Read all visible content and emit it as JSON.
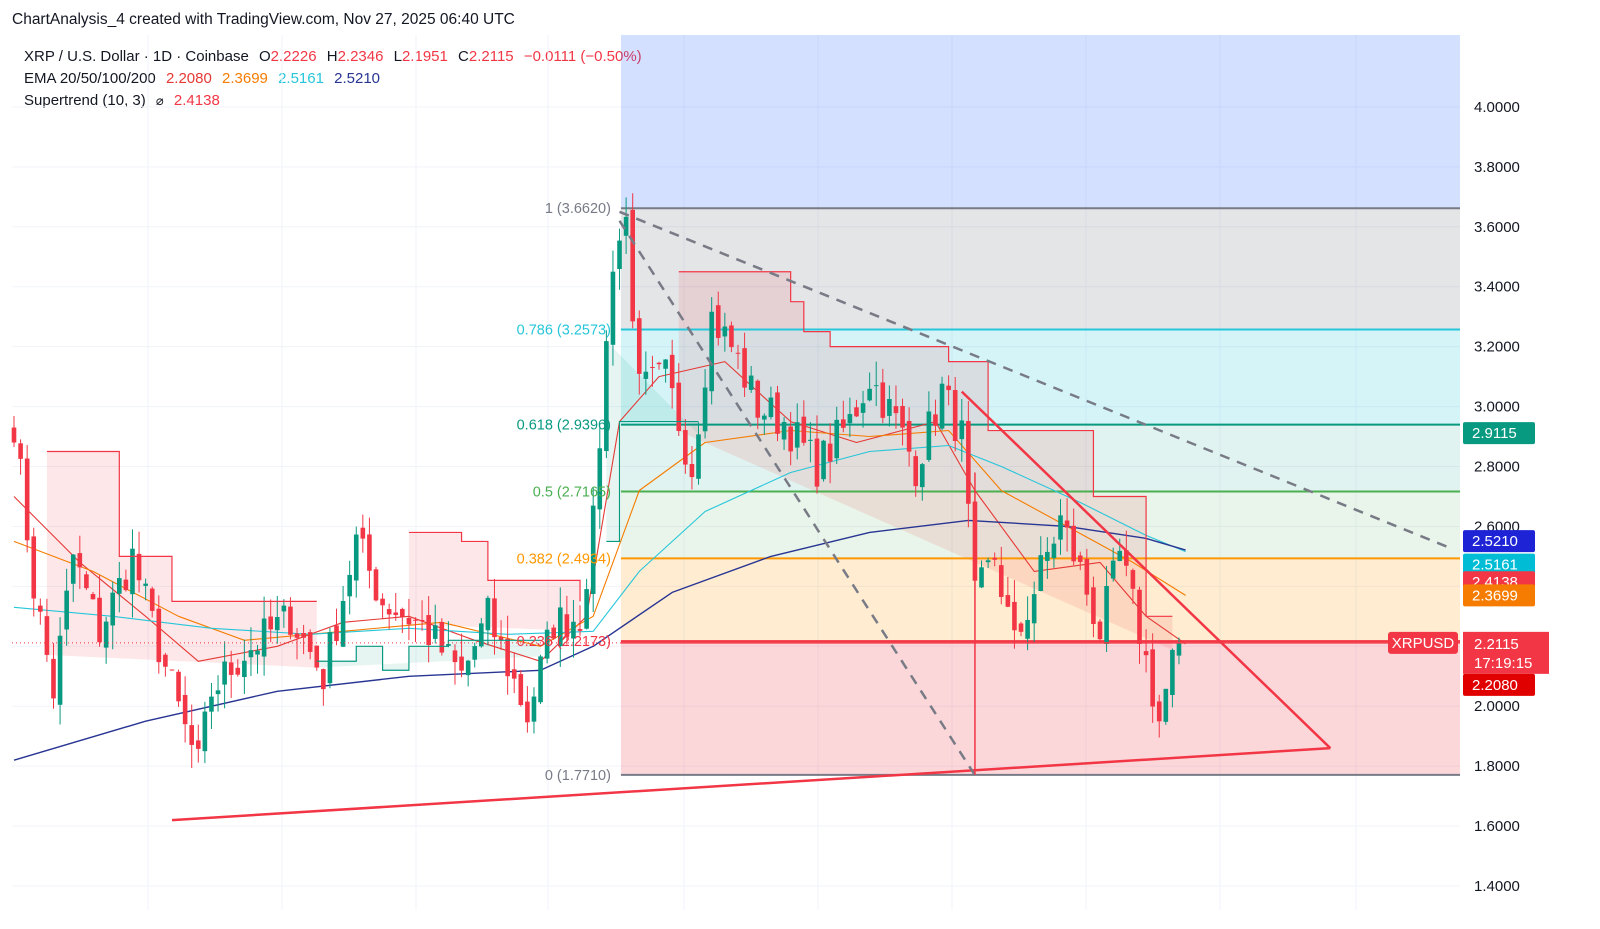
{
  "header": {
    "snapshot": "ChartAnalysis_4 created with TradingView.com, Nov 27, 2025 06:40 UTC"
  },
  "legend": {
    "symbol": "XRP / U.S. Dollar · 1D · Coinbase",
    "o_label": "O",
    "o": "2.2226",
    "h_label": "H",
    "h": "2.2346",
    "l_label": "L",
    "l": "2.1951",
    "c_label": "C",
    "c": "2.2115",
    "change": "−0.0111 (−0.50%)",
    "ema_label": "EMA 20/50/100/200",
    "ema20": "2.2080",
    "ema50": "2.3699",
    "ema100": "2.5161",
    "ema200": "2.5210",
    "st_label": "Supertrend (10, 3)",
    "st_icon": "⌀",
    "st_value": "2.4138"
  },
  "colors": {
    "ema20": "#e53935",
    "ema50": "#f57c00",
    "ema100": "#26c6da",
    "ema200": "#283593",
    "up": "#089981",
    "down": "#f23645",
    "price": "#f23645"
  },
  "chart_data": {
    "type": "candlestick",
    "title": "XRP / U.S. Dollar · 1D · Coinbase",
    "ylim": [
      1.32,
      4.24
    ],
    "y_ticks": [
      1.4,
      1.6,
      1.8,
      2.0,
      2.2,
      2.4,
      2.6,
      2.8,
      3.0,
      3.2,
      3.4,
      3.6,
      3.8,
      4.0
    ],
    "y_tick_labels": [
      "1.4000",
      "1.6000",
      "1.8000",
      "2.0000",
      "2.2000",
      "2.4000",
      "2.6000",
      "2.8000",
      "3.0000",
      "3.2000",
      "3.4000",
      "3.6000",
      "3.8000",
      "4.0000"
    ],
    "bar_count": 220,
    "fib_levels": [
      {
        "ratio": "1",
        "price": 3.662,
        "label": "1 (3.6620)",
        "color": "#787b86"
      },
      {
        "ratio": "0.786",
        "price": 3.2573,
        "label": "0.786 (3.2573)",
        "color": "#26c6da"
      },
      {
        "ratio": "0.618",
        "price": 2.9396,
        "label": "0.618 (2.9396)",
        "color": "#089981"
      },
      {
        "ratio": "0.5",
        "price": 2.7165,
        "label": "0.5 (2.7165)",
        "color": "#4caf50"
      },
      {
        "ratio": "0.382",
        "price": 2.4934,
        "label": "0.382 (2.4934)",
        "color": "#ff9800"
      },
      {
        "ratio": "0.236",
        "price": 2.2173,
        "label": "0.236 (2.2173)",
        "color": "#f23645"
      },
      {
        "ratio": "0",
        "price": 1.771,
        "label": "0 (1.7710)",
        "color": "#787b86"
      }
    ],
    "anchors": [
      {
        "bar": 0,
        "price": 2.95
      },
      {
        "bar": 3,
        "price": 2.4
      },
      {
        "bar": 6,
        "price": 2.05
      },
      {
        "bar": 9,
        "price": 2.5
      },
      {
        "bar": 13,
        "price": 2.25
      },
      {
        "bar": 18,
        "price": 2.5
      },
      {
        "bar": 22,
        "price": 2.2
      },
      {
        "bar": 26,
        "price": 1.92
      },
      {
        "bar": 28,
        "price": 1.8
      },
      {
        "bar": 30,
        "price": 2.05
      },
      {
        "bar": 35,
        "price": 2.18
      },
      {
        "bar": 42,
        "price": 2.3
      },
      {
        "bar": 47,
        "price": 2.1
      },
      {
        "bar": 52,
        "price": 2.55
      },
      {
        "bar": 56,
        "price": 2.35
      },
      {
        "bar": 62,
        "price": 2.27
      },
      {
        "bar": 68,
        "price": 2.1
      },
      {
        "bar": 72,
        "price": 2.3
      },
      {
        "bar": 78,
        "price": 1.97
      },
      {
        "bar": 82,
        "price": 2.28
      },
      {
        "bar": 86,
        "price": 2.3
      },
      {
        "bar": 88,
        "price": 2.6
      },
      {
        "bar": 91,
        "price": 3.5
      },
      {
        "bar": 93,
        "price": 3.62
      },
      {
        "bar": 95,
        "price": 3.05
      },
      {
        "bar": 99,
        "price": 3.1
      },
      {
        "bar": 103,
        "price": 2.8
      },
      {
        "bar": 106,
        "price": 3.3
      },
      {
        "bar": 109,
        "price": 3.2
      },
      {
        "bar": 113,
        "price": 3.0
      },
      {
        "bar": 117,
        "price": 2.95
      },
      {
        "bar": 122,
        "price": 2.8
      },
      {
        "bar": 127,
        "price": 2.95
      },
      {
        "bar": 130,
        "price": 3.1
      },
      {
        "bar": 134,
        "price": 2.95
      },
      {
        "bar": 137,
        "price": 2.8
      },
      {
        "bar": 141,
        "price": 3.05
      },
      {
        "bar": 144,
        "price": 2.9
      },
      {
        "bar": 146,
        "price": 2.35
      },
      {
        "bar": 149,
        "price": 2.5
      },
      {
        "bar": 152,
        "price": 2.2
      },
      {
        "bar": 156,
        "price": 2.45
      },
      {
        "bar": 159,
        "price": 2.62
      },
      {
        "bar": 162,
        "price": 2.45
      },
      {
        "bar": 165,
        "price": 2.25
      },
      {
        "bar": 168,
        "price": 2.5
      },
      {
        "bar": 171,
        "price": 2.25
      },
      {
        "bar": 174,
        "price": 1.95
      },
      {
        "bar": 177,
        "price": 2.25
      }
    ],
    "ema20_points": [
      [
        0,
        2.7
      ],
      [
        10,
        2.48
      ],
      [
        20,
        2.3
      ],
      [
        28,
        2.15
      ],
      [
        40,
        2.2
      ],
      [
        50,
        2.28
      ],
      [
        60,
        2.3
      ],
      [
        70,
        2.22
      ],
      [
        80,
        2.15
      ],
      [
        87,
        2.3
      ],
      [
        92,
        2.95
      ],
      [
        98,
        3.1
      ],
      [
        108,
        3.15
      ],
      [
        118,
        2.95
      ],
      [
        128,
        2.88
      ],
      [
        140,
        2.95
      ],
      [
        146,
        2.72
      ],
      [
        155,
        2.45
      ],
      [
        165,
        2.48
      ],
      [
        172,
        2.3
      ],
      [
        178,
        2.208
      ]
    ],
    "ema50_points": [
      [
        0,
        2.55
      ],
      [
        12,
        2.45
      ],
      [
        25,
        2.3
      ],
      [
        35,
        2.22
      ],
      [
        50,
        2.25
      ],
      [
        65,
        2.28
      ],
      [
        80,
        2.2
      ],
      [
        88,
        2.3
      ],
      [
        95,
        2.72
      ],
      [
        105,
        2.88
      ],
      [
        118,
        2.92
      ],
      [
        130,
        2.9
      ],
      [
        142,
        2.92
      ],
      [
        150,
        2.72
      ],
      [
        160,
        2.6
      ],
      [
        170,
        2.48
      ],
      [
        178,
        2.3699
      ]
    ],
    "ema100_points": [
      [
        0,
        2.33
      ],
      [
        15,
        2.3
      ],
      [
        30,
        2.26
      ],
      [
        45,
        2.24
      ],
      [
        60,
        2.26
      ],
      [
        75,
        2.24
      ],
      [
        88,
        2.25
      ],
      [
        95,
        2.45
      ],
      [
        105,
        2.65
      ],
      [
        118,
        2.78
      ],
      [
        130,
        2.85
      ],
      [
        142,
        2.87
      ],
      [
        150,
        2.8
      ],
      [
        162,
        2.68
      ],
      [
        172,
        2.57
      ],
      [
        178,
        2.5161
      ]
    ],
    "ema200_points": [
      [
        0,
        1.82
      ],
      [
        20,
        1.95
      ],
      [
        40,
        2.05
      ],
      [
        60,
        2.1
      ],
      [
        80,
        2.12
      ],
      [
        88,
        2.2
      ],
      [
        100,
        2.38
      ],
      [
        115,
        2.5
      ],
      [
        130,
        2.58
      ],
      [
        145,
        2.62
      ],
      [
        160,
        2.6
      ],
      [
        172,
        2.56
      ],
      [
        178,
        2.521
      ]
    ],
    "supertrend_segments": [
      {
        "dir": "down",
        "points": [
          [
            5,
            2.85
          ],
          [
            10,
            2.85
          ],
          [
            12,
            2.85
          ],
          [
            16,
            2.85
          ],
          [
            16,
            2.5
          ],
          [
            20,
            2.5
          ],
          [
            24,
            2.45
          ],
          [
            24,
            2.35
          ],
          [
            34,
            2.35
          ],
          [
            45,
            2.35
          ],
          [
            46,
            2.35
          ]
        ]
      },
      {
        "dir": "up",
        "points": [
          [
            46,
            2.15
          ],
          [
            52,
            2.2
          ],
          [
            56,
            2.12
          ],
          [
            60,
            2.2
          ],
          [
            66,
            2.22
          ],
          [
            74,
            2.22
          ],
          [
            80,
            2.22
          ]
        ]
      },
      {
        "dir": "down",
        "points": [
          [
            60,
            2.58
          ],
          [
            64,
            2.58
          ],
          [
            68,
            2.55
          ],
          [
            72,
            2.42
          ],
          [
            76,
            2.42
          ],
          [
            80,
            2.42
          ],
          [
            84,
            2.42
          ],
          [
            86,
            2.35
          ]
        ]
      },
      {
        "dir": "up",
        "points": [
          [
            90,
            2.55
          ],
          [
            92,
            2.95
          ],
          [
            100,
            2.95
          ],
          [
            104,
            2.95
          ]
        ]
      },
      {
        "dir": "down",
        "points": [
          [
            101,
            3.45
          ],
          [
            110,
            3.45
          ],
          [
            116,
            3.45
          ],
          [
            118,
            3.35
          ],
          [
            120,
            3.25
          ],
          [
            122,
            3.25
          ],
          [
            124,
            3.2
          ],
          [
            138,
            3.2
          ],
          [
            142,
            3.15
          ],
          [
            146,
            3.15
          ],
          [
            148,
            2.92
          ],
          [
            160,
            2.92
          ],
          [
            162,
            2.92
          ],
          [
            164,
            2.7
          ],
          [
            170,
            2.7
          ],
          [
            172,
            2.3
          ],
          [
            176,
            2.3
          ]
        ]
      }
    ],
    "trendlines": [
      {
        "kind": "support",
        "from": [
          24,
          1.62
        ],
        "to": [
          200,
          1.86
        ],
        "color": "#f23645"
      },
      {
        "kind": "wedge-upper",
        "from": [
          144,
          3.05
        ],
        "to": [
          200,
          1.86
        ],
        "color": "#f23645"
      },
      {
        "kind": "dashed-descending",
        "from": [
          92,
          3.65
        ],
        "to": [
          218,
          2.53
        ],
        "color": "#787b86"
      },
      {
        "kind": "dashed-steep",
        "from": [
          92,
          3.62
        ],
        "to": [
          146,
          1.77
        ],
        "color": "#787b86"
      }
    ],
    "price_scale_badges": [
      {
        "value": "2.9115",
        "color": "#089981"
      },
      {
        "value": "2.5210",
        "color": "#1e24d6"
      },
      {
        "value": "2.5161",
        "color": "#00bcd4"
      },
      {
        "value": "2.4138",
        "color": "#f23645"
      },
      {
        "value": "2.3699",
        "color": "#f57c00"
      },
      {
        "value": "2.2115",
        "color": "#f23645"
      },
      {
        "value": "2.2080",
        "color": "#e00000"
      }
    ],
    "badge_prices": [
      2.9115,
      2.521,
      2.5161,
      2.4138,
      2.3699,
      2.2115,
      2.208
    ],
    "last_price": {
      "symbol": "XRPUSD",
      "value": "2.2115",
      "countdown": "17:19:15",
      "price": 2.2115
    }
  }
}
